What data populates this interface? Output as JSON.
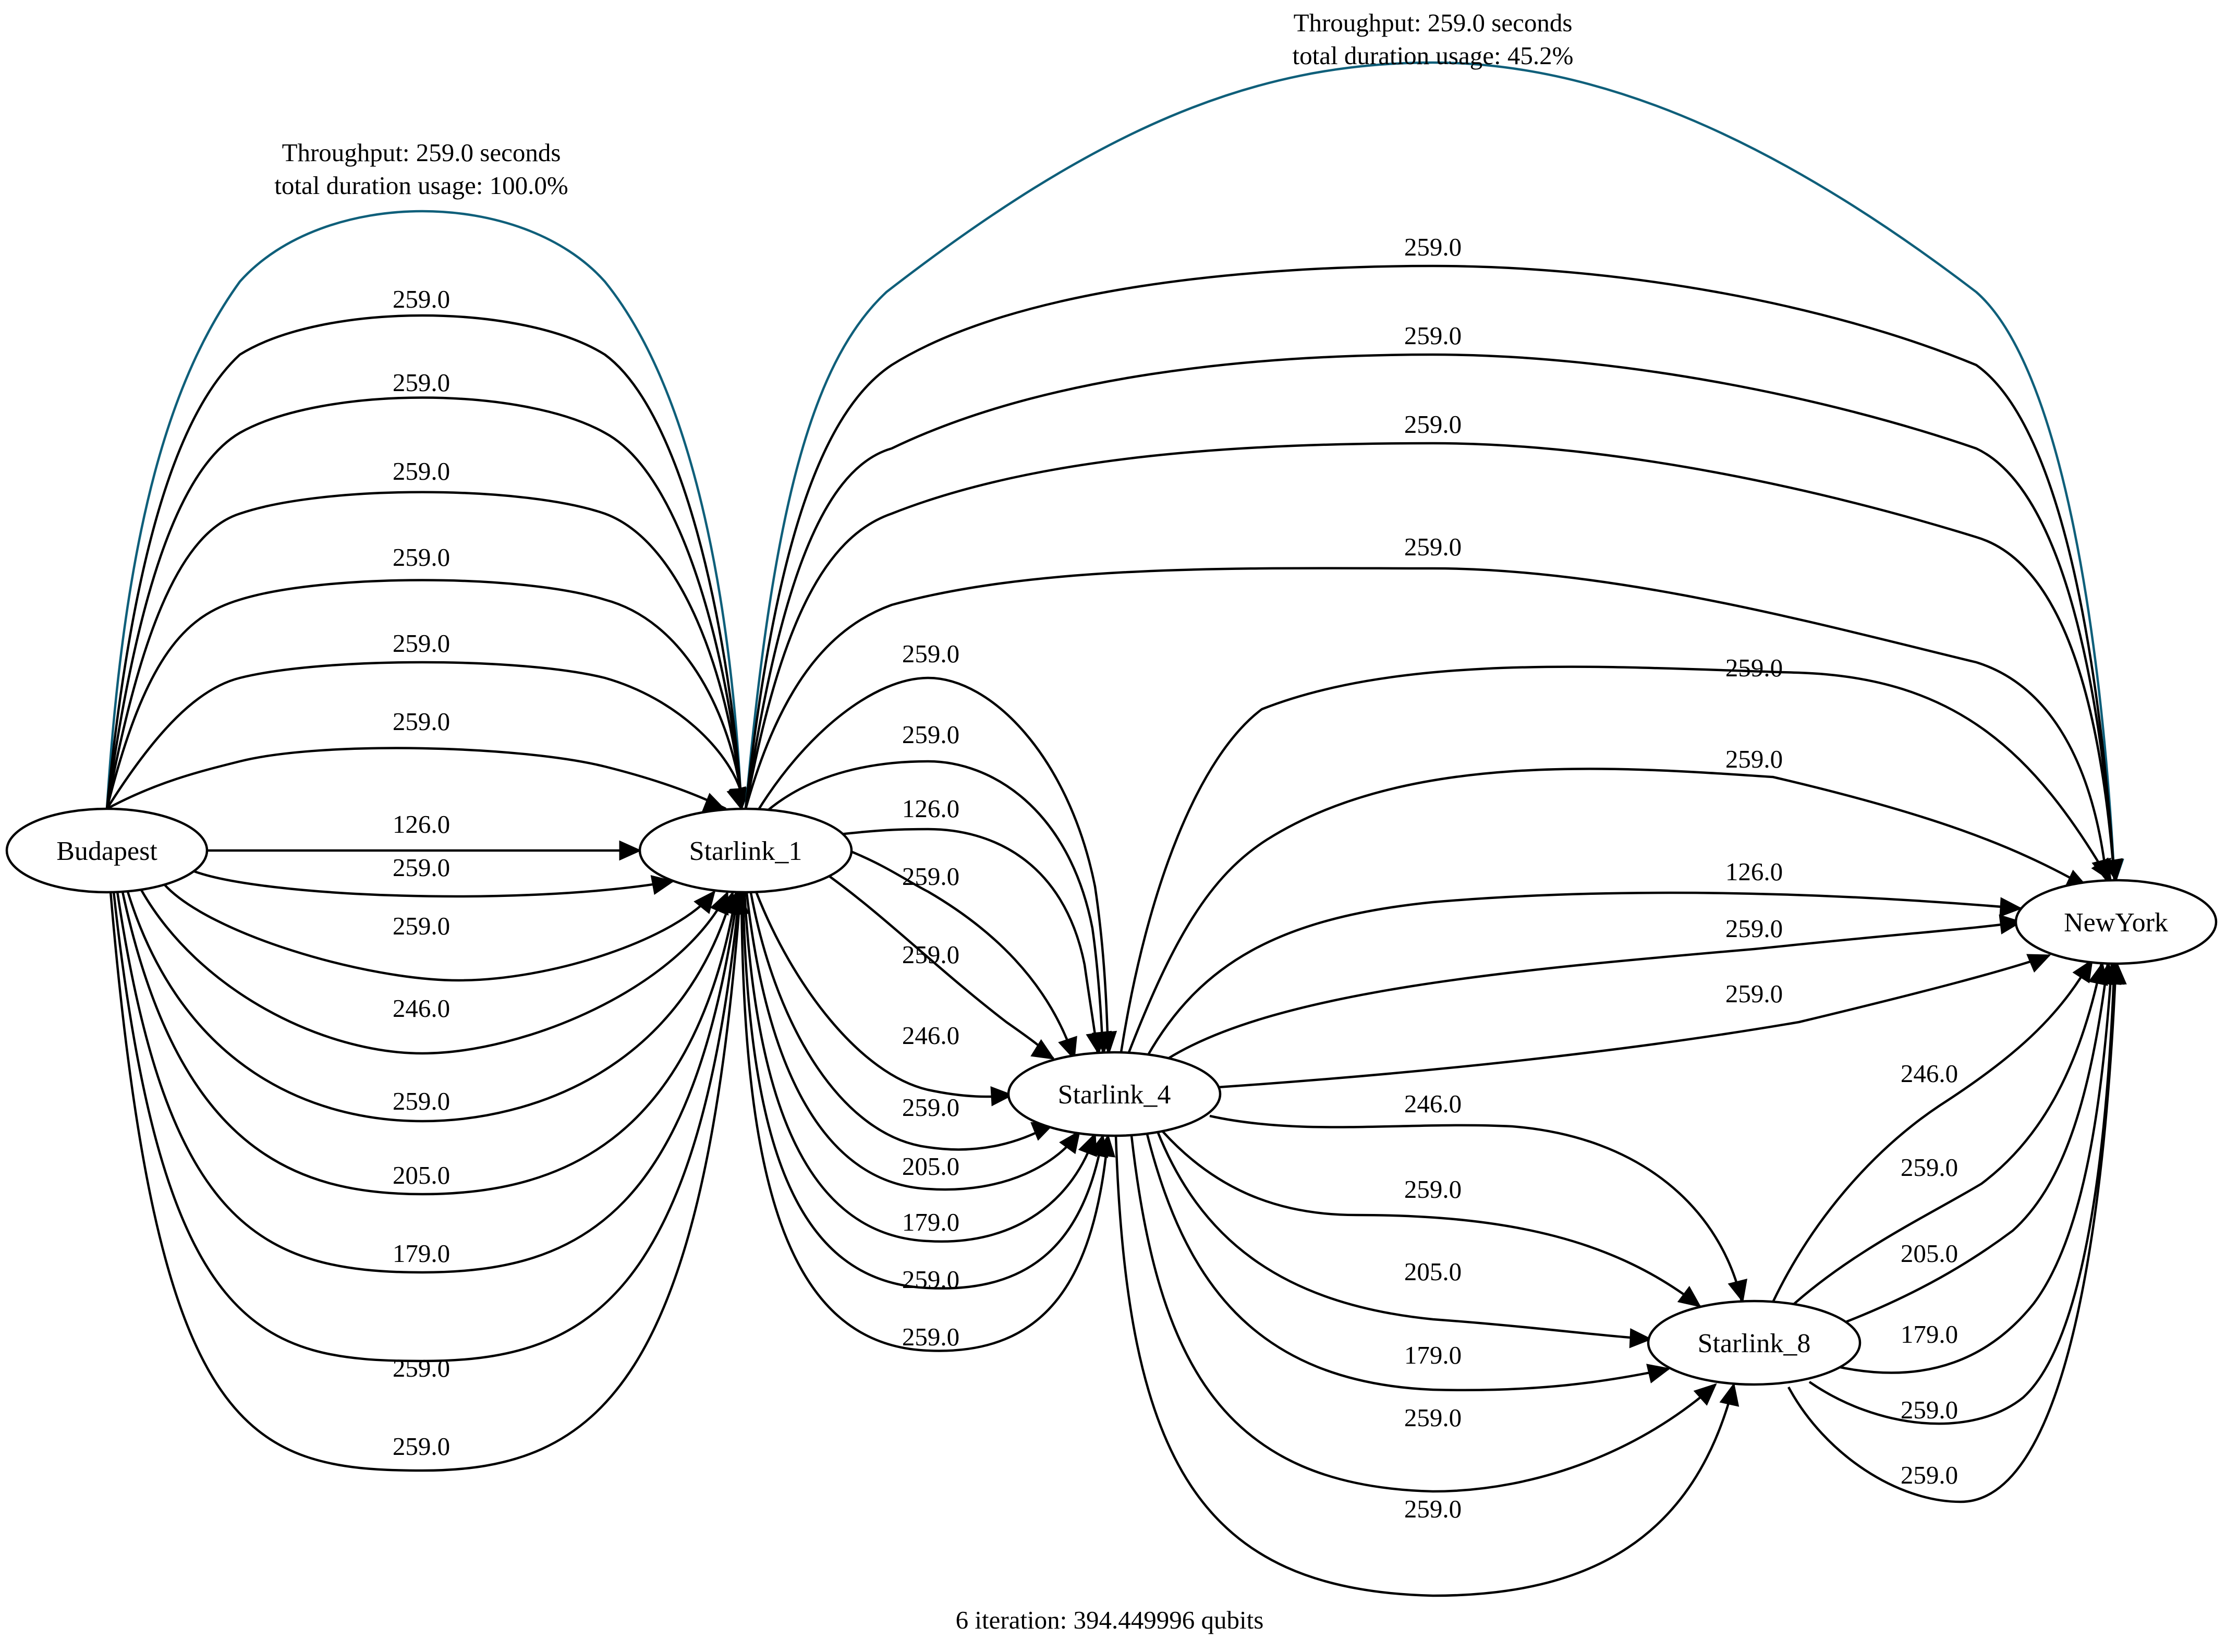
{
  "colors": {
    "edge": "#000000",
    "highlight": "#0f5f7a",
    "background": "#ffffff"
  },
  "nodes": [
    {
      "id": "Budapest",
      "label": "Budapest"
    },
    {
      "id": "Starlink_1",
      "label": "Starlink_1"
    },
    {
      "id": "Starlink_4",
      "label": "Starlink_4"
    },
    {
      "id": "Starlink_8",
      "label": "Starlink_8"
    },
    {
      "id": "NewYork",
      "label": "NewYork"
    }
  ],
  "edges": [
    {
      "from": "Budapest",
      "to": "Starlink_1",
      "label": "",
      "highlight": true
    },
    {
      "from": "Budapest",
      "to": "Starlink_1",
      "label": "259.0"
    },
    {
      "from": "Budapest",
      "to": "Starlink_1",
      "label": "259.0"
    },
    {
      "from": "Budapest",
      "to": "Starlink_1",
      "label": "259.0"
    },
    {
      "from": "Budapest",
      "to": "Starlink_1",
      "label": "259.0"
    },
    {
      "from": "Budapest",
      "to": "Starlink_1",
      "label": "259.0"
    },
    {
      "from": "Budapest",
      "to": "Starlink_1",
      "label": "259.0"
    },
    {
      "from": "Budapest",
      "to": "Starlink_1",
      "label": "126.0"
    },
    {
      "from": "Budapest",
      "to": "Starlink_1",
      "label": "259.0"
    },
    {
      "from": "Budapest",
      "to": "Starlink_1",
      "label": "259.0"
    },
    {
      "from": "Budapest",
      "to": "Starlink_1",
      "label": "246.0"
    },
    {
      "from": "Budapest",
      "to": "Starlink_1",
      "label": "259.0"
    },
    {
      "from": "Budapest",
      "to": "Starlink_1",
      "label": "205.0"
    },
    {
      "from": "Budapest",
      "to": "Starlink_1",
      "label": "179.0"
    },
    {
      "from": "Budapest",
      "to": "Starlink_1",
      "label": "259.0"
    },
    {
      "from": "Budapest",
      "to": "Starlink_1",
      "label": "259.0"
    },
    {
      "from": "Starlink_1",
      "to": "NewYork",
      "label": "",
      "highlight": true
    },
    {
      "from": "Starlink_1",
      "to": "NewYork",
      "label": "259.0"
    },
    {
      "from": "Starlink_1",
      "to": "NewYork",
      "label": "259.0"
    },
    {
      "from": "Starlink_1",
      "to": "NewYork",
      "label": "259.0"
    },
    {
      "from": "Starlink_1",
      "to": "NewYork",
      "label": "259.0"
    },
    {
      "from": "Starlink_1",
      "to": "Starlink_4",
      "label": "259.0"
    },
    {
      "from": "Starlink_1",
      "to": "Starlink_4",
      "label": "259.0"
    },
    {
      "from": "Starlink_1",
      "to": "Starlink_4",
      "label": "126.0"
    },
    {
      "from": "Starlink_1",
      "to": "Starlink_4",
      "label": "259.0"
    },
    {
      "from": "Starlink_1",
      "to": "Starlink_4",
      "label": "259.0"
    },
    {
      "from": "Starlink_1",
      "to": "Starlink_4",
      "label": "246.0"
    },
    {
      "from": "Starlink_1",
      "to": "Starlink_4",
      "label": "259.0"
    },
    {
      "from": "Starlink_1",
      "to": "Starlink_4",
      "label": "205.0"
    },
    {
      "from": "Starlink_1",
      "to": "Starlink_4",
      "label": "179.0"
    },
    {
      "from": "Starlink_1",
      "to": "Starlink_4",
      "label": "259.0"
    },
    {
      "from": "Starlink_1",
      "to": "Starlink_4",
      "label": "259.0"
    },
    {
      "from": "Starlink_4",
      "to": "NewYork",
      "label": "259.0"
    },
    {
      "from": "Starlink_4",
      "to": "NewYork",
      "label": "259.0"
    },
    {
      "from": "Starlink_4",
      "to": "NewYork",
      "label": "126.0"
    },
    {
      "from": "Starlink_4",
      "to": "NewYork",
      "label": "259.0"
    },
    {
      "from": "Starlink_4",
      "to": "NewYork",
      "label": "259.0"
    },
    {
      "from": "Starlink_4",
      "to": "Starlink_8",
      "label": "246.0"
    },
    {
      "from": "Starlink_4",
      "to": "Starlink_8",
      "label": "259.0"
    },
    {
      "from": "Starlink_4",
      "to": "Starlink_8",
      "label": "205.0"
    },
    {
      "from": "Starlink_4",
      "to": "Starlink_8",
      "label": "179.0"
    },
    {
      "from": "Starlink_4",
      "to": "Starlink_8",
      "label": "259.0"
    },
    {
      "from": "Starlink_4",
      "to": "Starlink_8",
      "label": "259.0"
    },
    {
      "from": "Starlink_8",
      "to": "NewYork",
      "label": "246.0"
    },
    {
      "from": "Starlink_8",
      "to": "NewYork",
      "label": "259.0"
    },
    {
      "from": "Starlink_8",
      "to": "NewYork",
      "label": "205.0"
    },
    {
      "from": "Starlink_8",
      "to": "NewYork",
      "label": "179.0"
    },
    {
      "from": "Starlink_8",
      "to": "NewYork",
      "label": "259.0"
    },
    {
      "from": "Starlink_8",
      "to": "NewYork",
      "label": "259.0"
    }
  ],
  "annotations": {
    "left_throughput": "Throughput: 259.0 seconds",
    "left_usage": "total duration usage: 100.0%",
    "right_throughput": "Throughput: 259.0 seconds",
    "right_usage": "total duration usage: 45.2%",
    "footer": "6 iteration: 394.449996 qubits"
  }
}
